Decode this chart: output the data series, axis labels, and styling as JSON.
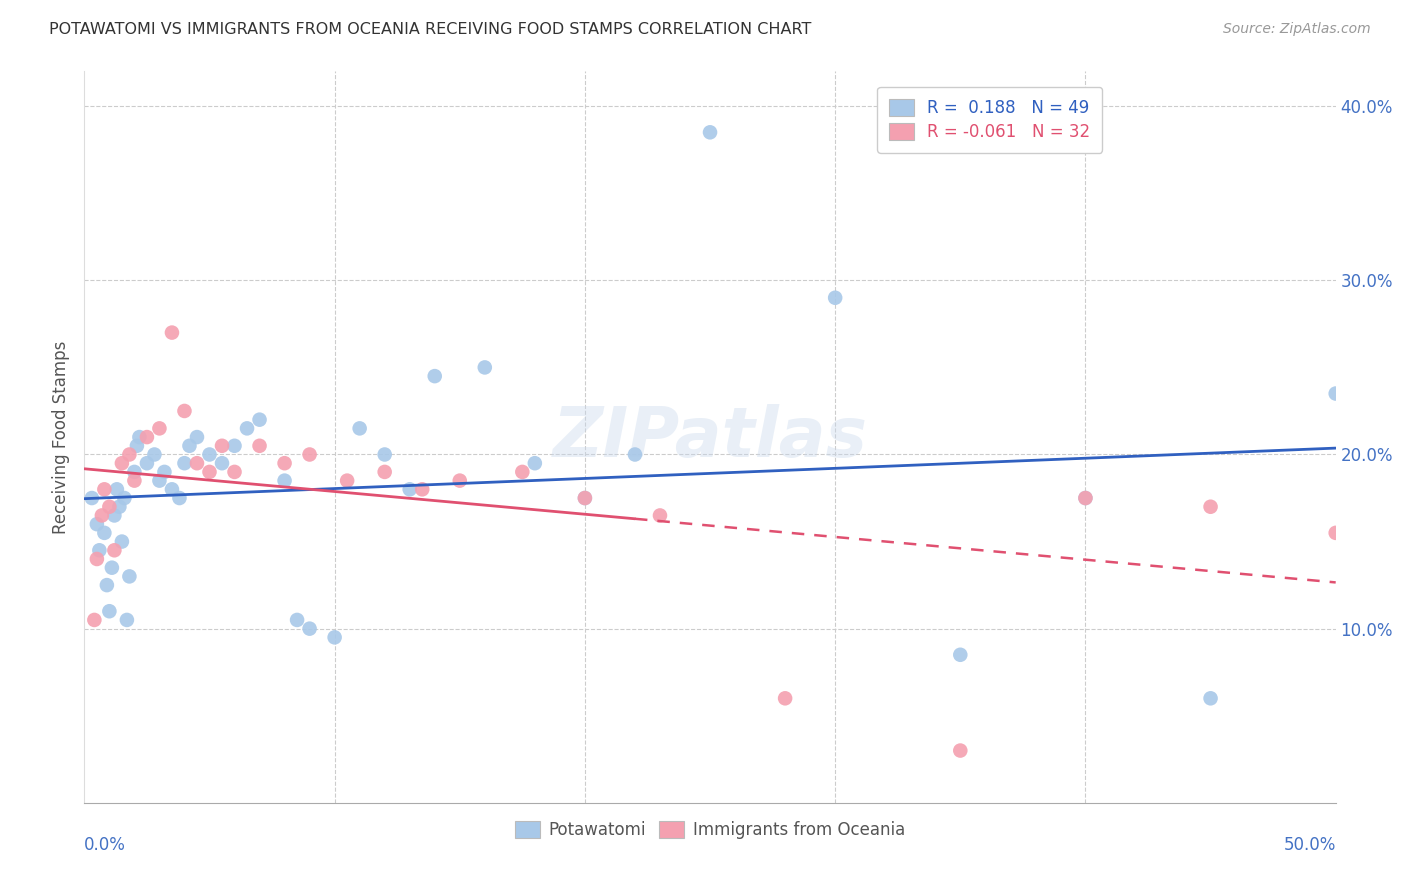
{
  "title": "POTAWATOMI VS IMMIGRANTS FROM OCEANIA RECEIVING FOOD STAMPS CORRELATION CHART",
  "source": "Source: ZipAtlas.com",
  "ylabel": "Receiving Food Stamps",
  "watermark": "ZIPatlas",
  "r1": 0.188,
  "n1": 49,
  "r2": -0.061,
  "n2": 32,
  "xlim": [
    0.0,
    50.0
  ],
  "ylim": [
    0.0,
    42.0
  ],
  "yticks": [
    10.0,
    20.0,
    30.0,
    40.0
  ],
  "blue_color": "#A8C8E8",
  "pink_color": "#F4A0B0",
  "line_blue": "#3060C0",
  "line_pink": "#E05070",
  "potawatomi_x": [
    0.3,
    0.5,
    0.6,
    0.8,
    0.9,
    1.0,
    1.1,
    1.2,
    1.3,
    1.4,
    1.5,
    1.6,
    1.7,
    1.8,
    2.0,
    2.1,
    2.2,
    2.5,
    2.8,
    3.0,
    3.2,
    3.5,
    3.8,
    4.0,
    4.2,
    4.5,
    5.0,
    5.5,
    6.0,
    6.5,
    7.0,
    8.0,
    8.5,
    9.0,
    10.0,
    11.0,
    12.0,
    13.0,
    14.0,
    16.0,
    18.0,
    20.0,
    22.0,
    25.0,
    30.0,
    35.0,
    40.0,
    45.0,
    50.0
  ],
  "potawatomi_y": [
    17.5,
    16.0,
    14.5,
    15.5,
    12.5,
    11.0,
    13.5,
    16.5,
    18.0,
    17.0,
    15.0,
    17.5,
    10.5,
    13.0,
    19.0,
    20.5,
    21.0,
    19.5,
    20.0,
    18.5,
    19.0,
    18.0,
    17.5,
    19.5,
    20.5,
    21.0,
    20.0,
    19.5,
    20.5,
    21.5,
    22.0,
    18.5,
    10.5,
    10.0,
    9.5,
    21.5,
    20.0,
    18.0,
    24.5,
    25.0,
    19.5,
    17.5,
    20.0,
    38.5,
    29.0,
    8.5,
    17.5,
    6.0,
    23.5
  ],
  "oceania_x": [
    0.4,
    0.5,
    0.7,
    0.8,
    1.0,
    1.2,
    1.5,
    1.8,
    2.0,
    2.5,
    3.0,
    3.5,
    4.0,
    4.5,
    5.0,
    5.5,
    6.0,
    7.0,
    8.0,
    9.0,
    10.5,
    12.0,
    13.5,
    15.0,
    17.5,
    20.0,
    23.0,
    28.0,
    35.0,
    40.0,
    45.0,
    50.0
  ],
  "oceania_y": [
    10.5,
    14.0,
    16.5,
    18.0,
    17.0,
    14.5,
    19.5,
    20.0,
    18.5,
    21.0,
    21.5,
    27.0,
    22.5,
    19.5,
    19.0,
    20.5,
    19.0,
    20.5,
    19.5,
    20.0,
    18.5,
    19.0,
    18.0,
    18.5,
    19.0,
    17.5,
    16.5,
    6.0,
    3.0,
    17.5,
    17.0,
    15.5
  ],
  "bg_color": "#FFFFFF",
  "grid_color": "#CCCCCC",
  "title_color": "#333333",
  "axis_label_color": "#4472C4"
}
